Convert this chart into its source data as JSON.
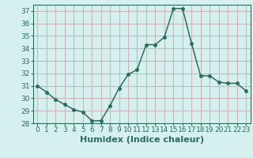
{
  "x": [
    0,
    1,
    2,
    3,
    4,
    5,
    6,
    7,
    8,
    9,
    10,
    11,
    12,
    13,
    14,
    15,
    16,
    17,
    18,
    19,
    20,
    21,
    22,
    23
  ],
  "y": [
    31.0,
    30.5,
    29.9,
    29.5,
    29.1,
    28.9,
    28.2,
    28.2,
    29.4,
    30.8,
    31.9,
    32.3,
    34.3,
    34.3,
    34.9,
    37.2,
    37.2,
    34.4,
    31.8,
    31.8,
    31.3,
    31.2,
    31.2,
    30.6
  ],
  "line_color": "#2e6b5e",
  "marker": "o",
  "marker_size": 2.5,
  "bg_color": "#d6f0f0",
  "grid_color": "#c8b8b8",
  "xlabel": "Humidex (Indice chaleur)",
  "ylim": [
    28,
    37.5
  ],
  "xlim": [
    -0.5,
    23.5
  ],
  "yticks": [
    28,
    29,
    30,
    31,
    32,
    33,
    34,
    35,
    36,
    37
  ],
  "xticks": [
    0,
    1,
    2,
    3,
    4,
    5,
    6,
    7,
    8,
    9,
    10,
    11,
    12,
    13,
    14,
    15,
    16,
    17,
    18,
    19,
    20,
    21,
    22,
    23
  ],
  "tick_fontsize": 6.5,
  "xlabel_fontsize": 8,
  "line_width": 1.1
}
